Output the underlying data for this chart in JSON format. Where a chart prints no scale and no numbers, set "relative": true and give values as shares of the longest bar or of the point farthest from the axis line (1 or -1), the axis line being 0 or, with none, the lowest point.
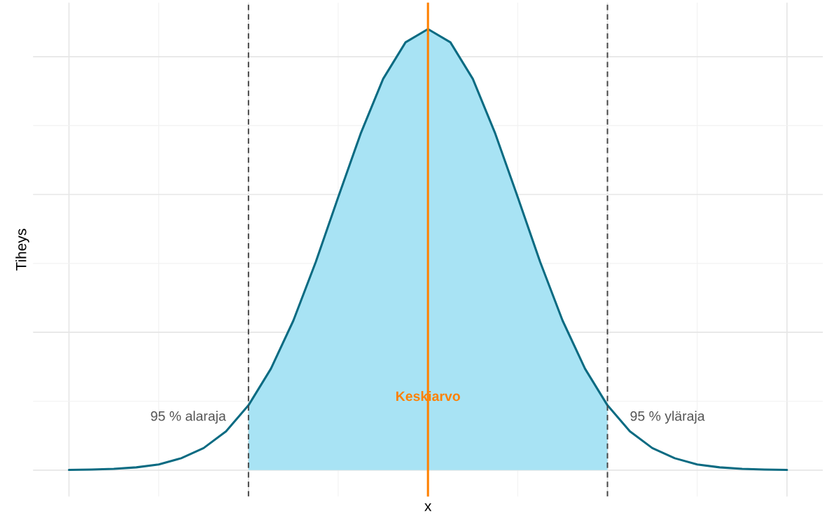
{
  "chart_data": {
    "type": "line",
    "xlabel": "x",
    "ylabel": "Tiheys",
    "relative": true,
    "grid": true,
    "tick_labels": false,
    "legend": false,
    "categories": [
      null,
      null,
      null,
      null,
      null,
      null,
      null,
      null,
      null,
      null,
      null,
      null,
      null,
      null,
      null,
      null,
      null,
      null,
      null,
      null,
      null,
      null,
      null,
      null,
      null,
      null,
      null,
      null,
      null,
      null,
      null,
      null,
      null
    ],
    "series": [
      {
        "type": "area",
        "color": "#a8e3f4",
        "values": [
          null,
          null,
          null,
          null,
          null,
          null,
          null,
          null,
          0.147,
          0.23,
          0.339,
          0.472,
          0.619,
          0.763,
          0.887,
          0.97,
          1,
          0.97,
          0.887,
          0.763,
          0.619,
          0.472,
          0.339,
          0.23,
          0.147,
          null,
          null,
          null,
          null,
          null,
          null,
          null,
          null
        ]
      },
      {
        "color": "#0b6b82",
        "values": [
          0.0005,
          0.0012,
          0.0028,
          0.0063,
          0.013,
          0.027,
          0.05,
          0.088,
          0.147,
          0.23,
          0.339,
          0.472,
          0.619,
          0.763,
          0.887,
          0.97,
          1,
          0.97,
          0.887,
          0.763,
          0.619,
          0.472,
          0.339,
          0.23,
          0.147,
          0.088,
          0.05,
          0.027,
          0.013,
          0.0063,
          0.0028,
          0.0012,
          0.0005
        ]
      }
    ],
    "annotations": [
      "95 % alaraja",
      "Keskiarvo",
      "95 % yläraja"
    ]
  }
}
